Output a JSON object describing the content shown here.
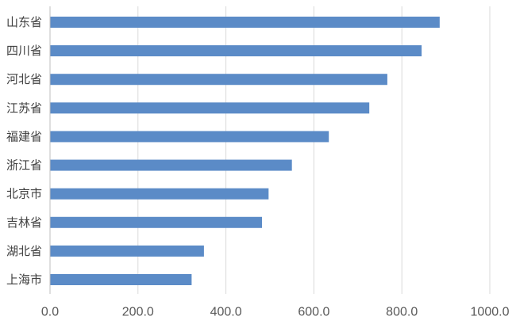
{
  "chart_data": {
    "type": "bar",
    "orientation": "horizontal",
    "categories": [
      "山东省",
      "四川省",
      "河北省",
      "江苏省",
      "福建省",
      "浙江省",
      "北京市",
      "吉林省",
      "湖北省",
      "上海市"
    ],
    "values": [
      886,
      845,
      767,
      726,
      634,
      550,
      497,
      482,
      350,
      322
    ],
    "x_ticks": [
      "0.0",
      "200.0",
      "400.0",
      "600.0",
      "800.0",
      "1000.0"
    ],
    "x_tick_values": [
      0,
      200,
      400,
      600,
      800,
      1000
    ],
    "xlim": [
      0,
      1000
    ],
    "grid": "vertical",
    "legend": "none",
    "colors": {
      "bar": "#5B8BC7",
      "grid": "#D9D9D9",
      "axis": "#BFBFBF"
    }
  }
}
